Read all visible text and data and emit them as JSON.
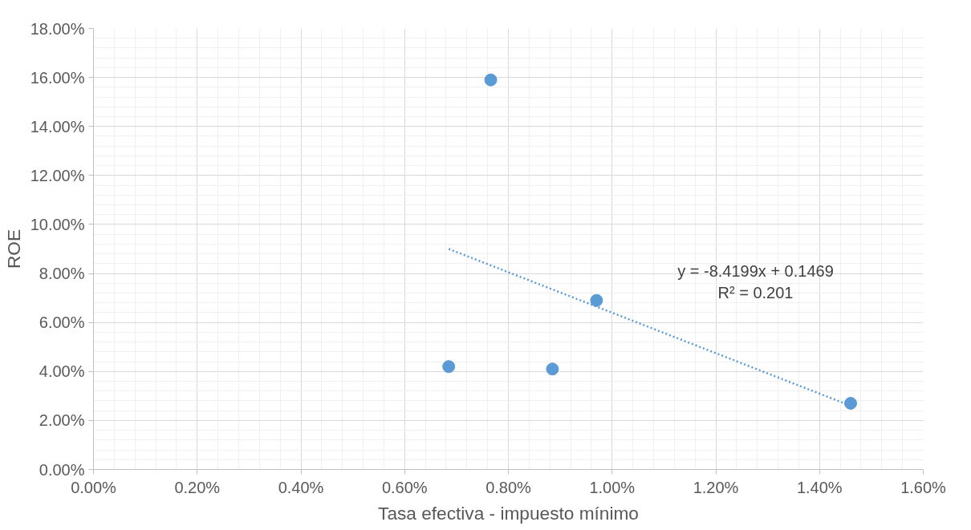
{
  "chart_data": {
    "type": "scatter",
    "xlabel": "Tasa efectiva - impuesto mínimo",
    "ylabel": "ROE",
    "series": [
      {
        "type": "scatter",
        "color": "#5b9bd5",
        "x": [
          0.685,
          0.766,
          0.885,
          0.97,
          1.46
        ],
        "values": [
          4.2,
          15.9,
          4.1,
          6.9,
          2.7
        ]
      },
      {
        "type": "line",
        "color": "#5b9bd5",
        "line_style": "dotted",
        "marker": "none",
        "x": [
          0.685,
          1.46
        ],
        "values": [
          9.0,
          2.6
        ]
      }
    ],
    "annotations": [
      "y = -8.4199x + 0.1469",
      "R² = 0.201"
    ],
    "xlim": [
      0,
      1.6
    ],
    "ylim": [
      0,
      18
    ],
    "xticks": [
      {
        "value": 0,
        "label": "0.00%"
      },
      {
        "value": 0.2,
        "label": "0.20%"
      },
      {
        "value": 0.4,
        "label": "0.40%"
      },
      {
        "value": 0.6,
        "label": "0.60%"
      },
      {
        "value": 0.8,
        "label": "0.80%"
      },
      {
        "value": 1.0,
        "label": "1.00%"
      },
      {
        "value": 1.2,
        "label": "1.20%"
      },
      {
        "value": 1.4,
        "label": "1.40%"
      },
      {
        "value": 1.6,
        "label": "1.60%"
      }
    ],
    "yticks": [
      {
        "value": 0,
        "label": "0.00%"
      },
      {
        "value": 2,
        "label": "2.00%"
      },
      {
        "value": 4,
        "label": "4.00%"
      },
      {
        "value": 6,
        "label": "6.00%"
      },
      {
        "value": 8,
        "label": "8.00%"
      },
      {
        "value": 10,
        "label": "10.00%"
      },
      {
        "value": 12,
        "label": "12.00%"
      },
      {
        "value": 14,
        "label": "14.00%"
      },
      {
        "value": 16,
        "label": "16.00%"
      },
      {
        "value": 18,
        "label": "18.00%"
      }
    ],
    "grid": true,
    "marker": "circle"
  }
}
